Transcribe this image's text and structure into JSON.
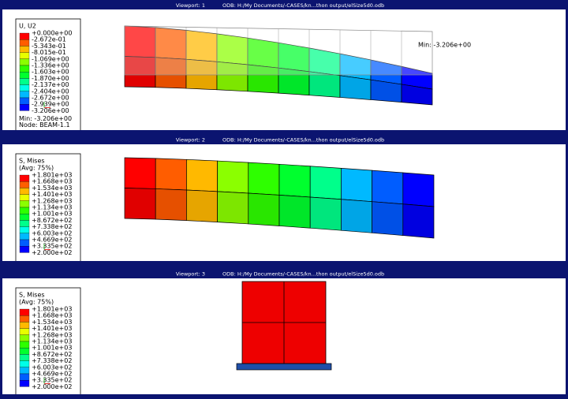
{
  "viewports": [
    {
      "title": "Viewport: 1",
      "odb": "ODB: H:/My Documents/-CASES/kn...thon output/elSize5d0.odb",
      "legend": {
        "title": [
          "U, U2"
        ],
        "labels": [
          "+0.000e+00",
          "-2.672e-01",
          "-5.343e-01",
          "-8.015e-01",
          "-1.069e+00",
          "-1.336e+00",
          "-1.603e+00",
          "-1.870e+00",
          "-2.137e+00",
          "-2.404e+00",
          "-2.672e+00",
          "-2.939e+00",
          "-3.206e+00"
        ],
        "footer": [
          "Min: -3.206e+00",
          "Node: BEAM-1.1"
        ]
      },
      "annotation": "Min: -3.206e+00"
    },
    {
      "title": "Viewport: 2",
      "odb": "ODB: H:/My Documents/-CASES/kn...thon output/elSize5d0.odb",
      "legend": {
        "title": [
          "S, Mises",
          "(Avg: 75%)"
        ],
        "labels": [
          "+1.801e+03",
          "+1.668e+03",
          "+1.534e+03",
          "+1.401e+03",
          "+1.268e+03",
          "+1.134e+03",
          "+1.001e+03",
          "+8.672e+02",
          "+7.338e+02",
          "+6.003e+02",
          "+4.669e+02",
          "+3.335e+02",
          "+2.000e+02"
        ],
        "footer": []
      }
    },
    {
      "title": "Viewport: 3",
      "odb": "ODB: H:/My Documents/-CASES/kn...thon output/elSize5d0.odb",
      "legend": {
        "title": [
          "S, Mises",
          "(Avg: 75%)"
        ],
        "labels": [
          "+1.801e+03",
          "+1.668e+03",
          "+1.534e+03",
          "+1.401e+03",
          "+1.268e+03",
          "+1.134e+03",
          "+1.001e+03",
          "+8.672e+02",
          "+7.338e+02",
          "+6.003e+02",
          "+4.669e+02",
          "+3.335e+02",
          "+2.000e+02"
        ],
        "footer": []
      }
    }
  ]
}
